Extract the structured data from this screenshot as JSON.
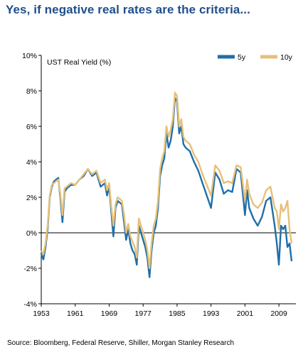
{
  "header": {
    "title": "Yes, if negative real rates are the criteria..."
  },
  "footer": {
    "source": "Source: Bloomberg, Federal Reserve, Shiller, Morgan Stanley Research"
  },
  "chart_data": {
    "type": "line",
    "ylabel": "UST Real Yield (%)",
    "xlim": [
      1953,
      2013
    ],
    "ylim": [
      -4,
      10
    ],
    "y_ticks": [
      -4,
      -2,
      0,
      2,
      4,
      6,
      8,
      10
    ],
    "y_tick_labels": [
      "-4%",
      "-2%",
      "0%",
      "2%",
      "4%",
      "6%",
      "8%",
      "10%"
    ],
    "x_ticks": [
      1953,
      1961,
      1969,
      1977,
      1985,
      1993,
      2001,
      2009
    ],
    "x_tick_labels": [
      "1953",
      "1961",
      "1969",
      "1977",
      "1985",
      "1993",
      "2001",
      "2009"
    ],
    "legend_position": "top-right",
    "colors": {
      "5y": "#1f6fa8",
      "10y": "#e6c078"
    },
    "series": [
      {
        "name": "5y",
        "x": [
          1953,
          1953.5,
          1954,
          1954.5,
          1955,
          1955.5,
          1956,
          1957,
          1957.5,
          1958,
          1958.5,
          1959,
          1960,
          1961,
          1962,
          1963,
          1964,
          1965,
          1966,
          1967,
          1968,
          1968.5,
          1969,
          1969.5,
          1970,
          1970.5,
          1971,
          1972,
          1972.5,
          1973,
          1973.5,
          1974,
          1974.5,
          1975,
          1975.5,
          1976,
          1977,
          1977.5,
          1978,
          1978.5,
          1979,
          1979.5,
          1980,
          1980.5,
          1981,
          1981.5,
          1982,
          1982.5,
          1983,
          1983.5,
          1984,
          1984.5,
          1985,
          1985.5,
          1986,
          1986.5,
          1987,
          1988,
          1989,
          1990,
          1991,
          1992,
          1993,
          1994,
          1995,
          1996,
          1997,
          1998,
          1999,
          2000,
          2001,
          2001.5,
          2002,
          2003,
          2004,
          2005,
          2006,
          2007,
          2008,
          2008.5,
          2009,
          2009.5,
          2010,
          2010.5,
          2011,
          2011.5,
          2012
        ],
        "values": [
          -1.2,
          -1.5,
          -0.8,
          0.2,
          2.0,
          2.6,
          2.9,
          3.1,
          2.0,
          0.6,
          2.3,
          2.5,
          2.7,
          2.7,
          3.0,
          3.2,
          3.6,
          3.2,
          3.4,
          2.6,
          2.8,
          2.1,
          2.6,
          1.2,
          -0.2,
          1.4,
          1.8,
          1.6,
          0.6,
          -0.4,
          0.2,
          -0.6,
          -1.0,
          -1.2,
          -1.8,
          0.4,
          -0.4,
          -0.8,
          -1.4,
          -2.5,
          -1.0,
          0.0,
          0.4,
          1.4,
          3.2,
          3.8,
          4.2,
          5.6,
          4.8,
          5.2,
          6.0,
          7.6,
          7.4,
          5.6,
          6.0,
          5.0,
          4.8,
          4.6,
          4.0,
          3.5,
          2.8,
          2.1,
          1.4,
          3.4,
          3.0,
          2.2,
          2.4,
          2.3,
          3.6,
          3.4,
          1.0,
          2.4,
          1.4,
          0.8,
          0.4,
          0.9,
          1.8,
          2.0,
          0.4,
          -0.6,
          -1.8,
          0.4,
          0.2,
          0.4,
          -0.8,
          -0.6,
          -1.6
        ]
      },
      {
        "name": "10y",
        "x": [
          1953,
          1953.5,
          1954,
          1954.5,
          1955,
          1955.5,
          1956,
          1957,
          1957.5,
          1958,
          1958.5,
          1959,
          1960,
          1961,
          1962,
          1963,
          1964,
          1965,
          1966,
          1967,
          1968,
          1968.5,
          1969,
          1969.5,
          1970,
          1970.5,
          1971,
          1972,
          1972.5,
          1973,
          1973.5,
          1974,
          1974.5,
          1975,
          1975.5,
          1976,
          1977,
          1977.5,
          1978,
          1978.5,
          1979,
          1979.5,
          1980,
          1980.5,
          1981,
          1981.5,
          1982,
          1982.5,
          1983,
          1983.5,
          1984,
          1984.5,
          1985,
          1985.5,
          1986,
          1986.5,
          1987,
          1988,
          1989,
          1990,
          1991,
          1992,
          1993,
          1994,
          1995,
          1996,
          1997,
          1998,
          1999,
          2000,
          2001,
          2001.5,
          2002,
          2003,
          2004,
          2005,
          2006,
          2007,
          2008,
          2008.5,
          2009,
          2009.5,
          2010,
          2010.5,
          2011,
          2011.5,
          2012
        ],
        "values": [
          -1.0,
          -1.2,
          -0.6,
          0.4,
          2.1,
          2.7,
          2.8,
          3.0,
          2.2,
          1.0,
          2.5,
          2.6,
          2.8,
          2.7,
          3.0,
          3.3,
          3.6,
          3.3,
          3.5,
          2.8,
          3.0,
          2.4,
          2.8,
          1.5,
          0.4,
          1.6,
          2.0,
          1.8,
          1.0,
          0.0,
          0.5,
          -0.2,
          -0.5,
          -0.8,
          -1.4,
          0.8,
          0.0,
          -0.4,
          -1.0,
          -2.0,
          -0.6,
          0.4,
          0.8,
          1.8,
          3.6,
          4.2,
          4.6,
          6.0,
          5.4,
          5.8,
          6.4,
          7.9,
          7.7,
          6.0,
          6.4,
          5.4,
          5.2,
          5.0,
          4.4,
          4.0,
          3.3,
          2.7,
          2.1,
          3.8,
          3.5,
          2.8,
          2.9,
          2.8,
          3.8,
          3.7,
          1.8,
          3.0,
          2.2,
          1.6,
          1.4,
          1.7,
          2.4,
          2.6,
          1.4,
          1.2,
          0.2,
          1.6,
          1.2,
          1.4,
          1.8,
          0.2,
          -0.6
        ]
      }
    ]
  }
}
